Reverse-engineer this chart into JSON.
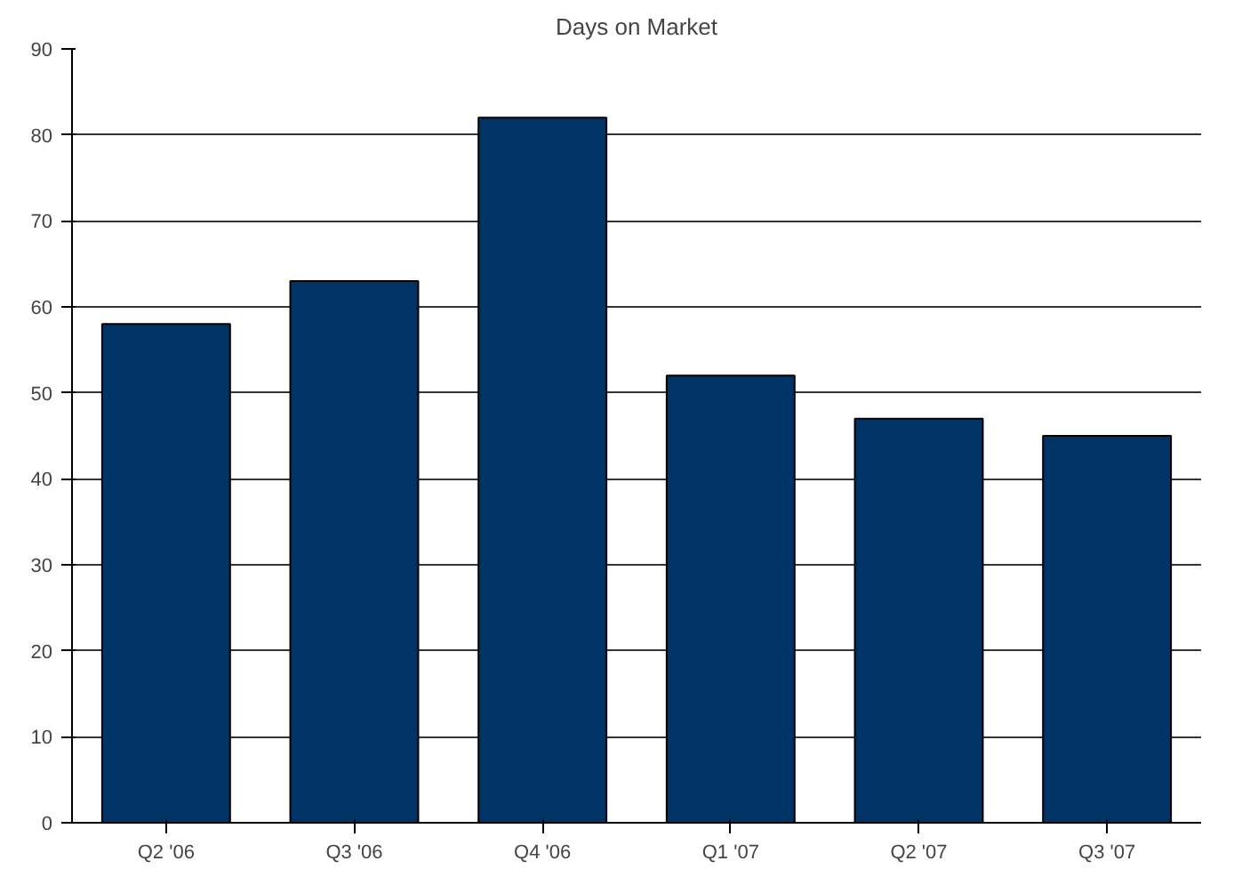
{
  "chart_data": {
    "type": "bar",
    "title": "Days on Market",
    "categories": [
      "Q2 '06",
      "Q3 '06",
      "Q4 '06",
      "Q1 '07",
      "Q2 '07",
      "Q3 '07"
    ],
    "values": [
      58,
      63,
      82,
      52,
      47,
      45
    ],
    "color": "#003366",
    "ylim": [
      0,
      90
    ],
    "yticks": [
      0,
      10,
      20,
      30,
      40,
      50,
      60,
      70,
      80,
      90
    ],
    "grid": "y"
  }
}
